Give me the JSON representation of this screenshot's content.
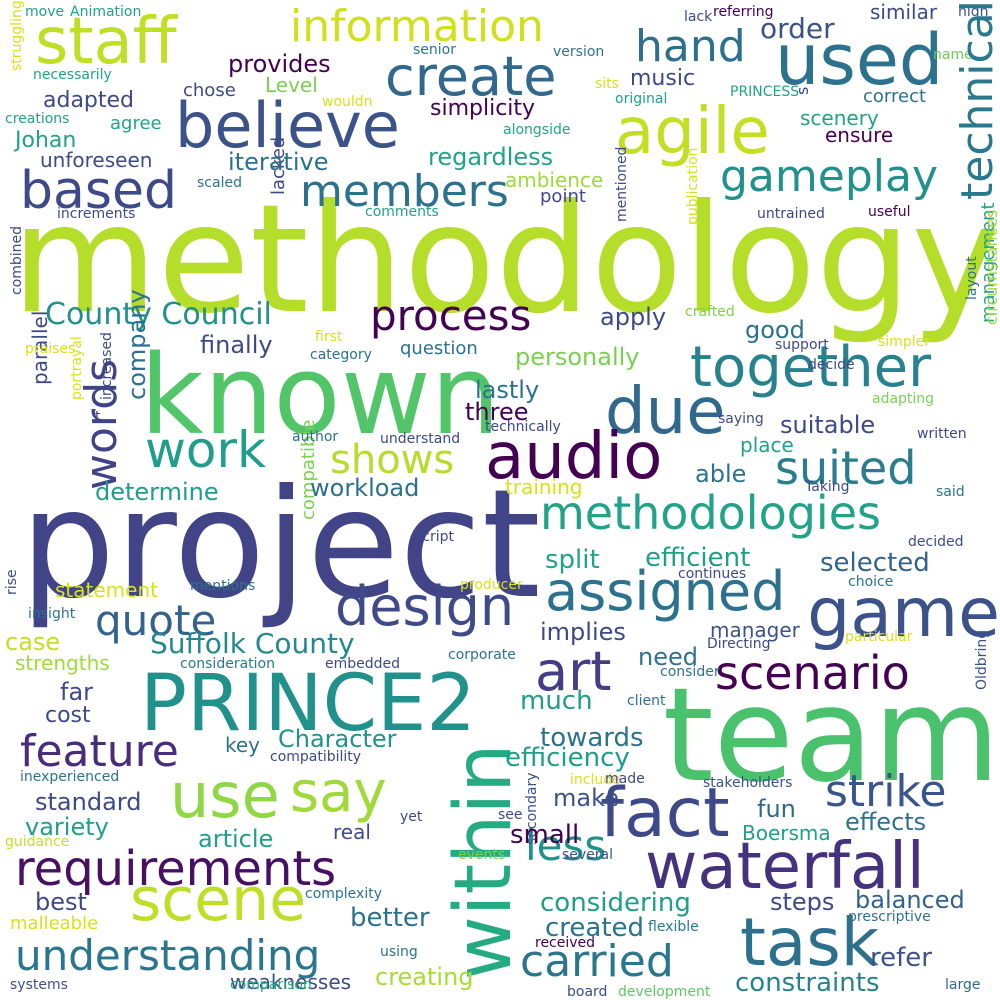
{
  "words": [
    {
      "text": "methodology",
      "color": "#b5de2b"
    },
    {
      "text": "project",
      "color": "#414487"
    },
    {
      "text": "team",
      "color": "#4ac16d"
    },
    {
      "text": "known",
      "color": "#52c569"
    },
    {
      "text": "PRINCE2",
      "color": "#21918c"
    },
    {
      "text": "within",
      "color": "#25ab82"
    },
    {
      "text": "staff",
      "color": "#bddf26"
    },
    {
      "text": "believe",
      "color": "#3b528b"
    },
    {
      "text": "agile",
      "color": "#c2df23"
    },
    {
      "text": "used",
      "color": "#2c728e"
    },
    {
      "text": "information",
      "color": "#d0e11c"
    },
    {
      "text": "create",
      "color": "#31688e"
    },
    {
      "text": "hand",
      "color": "#2d708e"
    },
    {
      "text": "order",
      "color": "#3b528b"
    },
    {
      "text": "similar",
      "color": "#3e4989"
    },
    {
      "text": "high",
      "color": "#3b528b"
    },
    {
      "text": "name",
      "color": "#6ccd5a"
    },
    {
      "text": "based",
      "color": "#3e4989"
    },
    {
      "text": "members",
      "color": "#2c728e"
    },
    {
      "text": "gameplay",
      "color": "#21918c"
    },
    {
      "text": "technical",
      "color": "#2a788e"
    },
    {
      "text": "process",
      "color": "#440154"
    },
    {
      "text": "County Council",
      "color": "#21918c"
    },
    {
      "text": "together",
      "color": "#26828e"
    },
    {
      "text": "due",
      "color": "#31688e"
    },
    {
      "text": "audio",
      "color": "#440154"
    },
    {
      "text": "work",
      "color": "#1f9e89"
    },
    {
      "text": "shows",
      "color": "#b5de2b"
    },
    {
      "text": "words",
      "color": "#404387"
    },
    {
      "text": "suited",
      "color": "#287d8e"
    },
    {
      "text": "methodologies",
      "color": "#20a386"
    },
    {
      "text": "design",
      "color": "#3e4a89"
    },
    {
      "text": "assigned",
      "color": "#2c728e"
    },
    {
      "text": "game",
      "color": "#3b528b"
    },
    {
      "text": "quote",
      "color": "#33638d"
    },
    {
      "text": "Suffolk County",
      "color": "#23898e"
    },
    {
      "text": "art",
      "color": "#433e85"
    },
    {
      "text": "scenario",
      "color": "#440154"
    },
    {
      "text": "feature",
      "color": "#472d7b"
    },
    {
      "text": "use",
      "color": "#8fd744"
    },
    {
      "text": "say",
      "color": "#a0da39"
    },
    {
      "text": "fact",
      "color": "#3e4989"
    },
    {
      "text": "strike",
      "color": "#3a548c"
    },
    {
      "text": "waterfall",
      "color": "#46317e"
    },
    {
      "text": "requirements",
      "color": "#471063"
    },
    {
      "text": "scene",
      "color": "#bddf26"
    },
    {
      "text": "task",
      "color": "#2d708e"
    },
    {
      "text": "understanding",
      "color": "#2a768e"
    },
    {
      "text": "carried",
      "color": "#2a768e"
    },
    {
      "text": "less",
      "color": "#21918c"
    },
    {
      "text": "refer",
      "color": "#3b528b"
    },
    {
      "text": "constraints",
      "color": "#26828e"
    },
    {
      "text": "creating",
      "color": "#a8db34"
    },
    {
      "text": "weaknesses",
      "color": "#3e4989"
    },
    {
      "text": "systems",
      "color": "#3b528b"
    },
    {
      "text": "comparison",
      "color": "#25ab82"
    },
    {
      "text": "board",
      "color": "#3e4989"
    },
    {
      "text": "development",
      "color": "#5ec962"
    },
    {
      "text": "large",
      "color": "#31688e"
    },
    {
      "text": "received",
      "color": "#440154"
    },
    {
      "text": "flexible",
      "color": "#2a788e"
    },
    {
      "text": "malleable",
      "color": "#d8e219"
    },
    {
      "text": "prescriptive",
      "color": "#2c728e"
    },
    {
      "text": "using",
      "color": "#2c728e"
    },
    {
      "text": "secondary",
      "color": "#3b528b"
    },
    {
      "text": "balanced",
      "color": "#33638d"
    },
    {
      "text": "steps",
      "color": "#3e4989"
    },
    {
      "text": "considering",
      "color": "#1f9e89"
    },
    {
      "text": "created",
      "color": "#2c728e"
    },
    {
      "text": "better",
      "color": "#2c728e"
    },
    {
      "text": "best",
      "color": "#3e4989"
    },
    {
      "text": "complexity",
      "color": "#2c728e"
    },
    {
      "text": "several",
      "color": "#3b528b"
    },
    {
      "text": "events",
      "color": "#7ad151"
    },
    {
      "text": "yet",
      "color": "#3e4989"
    },
    {
      "text": "see",
      "color": "#3e4989"
    },
    {
      "text": "guidance",
      "color": "#c2df23"
    },
    {
      "text": "variety",
      "color": "#1f9e89"
    },
    {
      "text": "article",
      "color": "#1f9e89"
    },
    {
      "text": "real",
      "color": "#3e4989"
    },
    {
      "text": "small",
      "color": "#440154"
    },
    {
      "text": "standard",
      "color": "#3e4989"
    },
    {
      "text": "make",
      "color": "#3b528b"
    },
    {
      "text": "fun",
      "color": "#31688e"
    },
    {
      "text": "Boersma",
      "color": "#1f9e89"
    },
    {
      "text": "effects",
      "color": "#2c728e"
    },
    {
      "text": "stakeholders",
      "color": "#3b528b"
    },
    {
      "text": "Oldbring",
      "color": "#3b528b"
    },
    {
      "text": "inexperienced",
      "color": "#2c728e"
    },
    {
      "text": "compatibility",
      "color": "#3e4989"
    },
    {
      "text": "efficiency",
      "color": "#1f9e89"
    },
    {
      "text": "towards",
      "color": "#2c728e"
    },
    {
      "text": "include",
      "color": "#d8e219"
    },
    {
      "text": "made",
      "color": "#3e4989"
    },
    {
      "text": "client",
      "color": "#2c728e"
    },
    {
      "text": "key",
      "color": "#2c728e"
    },
    {
      "text": "Character",
      "color": "#21918c"
    },
    {
      "text": "cost",
      "color": "#3e4989"
    },
    {
      "text": "far",
      "color": "#3e4989"
    },
    {
      "text": "much",
      "color": "#1f9e89"
    },
    {
      "text": "need",
      "color": "#2c728e"
    },
    {
      "text": "manager",
      "color": "#3b528b"
    },
    {
      "text": "consider",
      "color": "#2c728e"
    },
    {
      "text": "Directing",
      "color": "#3e4989"
    },
    {
      "text": "particular",
      "color": "#d8e219"
    },
    {
      "text": "choice",
      "color": "#2c728e"
    },
    {
      "text": "selected",
      "color": "#33638d"
    },
    {
      "text": "continues",
      "color": "#3e4989"
    },
    {
      "text": "strengths",
      "color": "#a0da39"
    },
    {
      "text": "case",
      "color": "#c2df23"
    },
    {
      "text": "consideration",
      "color": "#2a788e"
    },
    {
      "text": "embedded",
      "color": "#3e4989"
    },
    {
      "text": "corporate",
      "color": "#2c728e"
    },
    {
      "text": "implies",
      "color": "#3e4989"
    },
    {
      "text": "split",
      "color": "#20a386"
    },
    {
      "text": "efficient",
      "color": "#1f9e89"
    },
    {
      "text": "statement",
      "color": "#d8e219"
    },
    {
      "text": "mentions",
      "color": "#2c728e"
    },
    {
      "text": "producer",
      "color": "#d8e219"
    },
    {
      "text": "insight",
      "color": "#2c728e"
    },
    {
      "text": "rise",
      "color": "#3e4989"
    },
    {
      "text": "script",
      "color": "#3e4989"
    },
    {
      "text": "compatible",
      "color": "#7ad151"
    },
    {
      "text": "determine",
      "color": "#1f9e89"
    },
    {
      "text": "workload",
      "color": "#2c728e"
    },
    {
      "text": "training",
      "color": "#d8e219"
    },
    {
      "text": "able",
      "color": "#2c728e"
    },
    {
      "text": "Taking",
      "color": "#3e4989"
    },
    {
      "text": "said",
      "color": "#2c728e"
    },
    {
      "text": "decided",
      "color": "#3e4989"
    },
    {
      "text": "place",
      "color": "#20a386"
    },
    {
      "text": "written",
      "color": "#3e4989"
    },
    {
      "text": "parallel",
      "color": "#3e4989"
    },
    {
      "text": "company",
      "color": "#2c728e"
    },
    {
      "text": "increased",
      "color": "#3e4989"
    },
    {
      "text": "portrayal",
      "color": "#d8e219"
    },
    {
      "text": "lastly",
      "color": "#2c728e"
    },
    {
      "text": "three",
      "color": "#440154"
    },
    {
      "text": "technically",
      "color": "#3e4989"
    },
    {
      "text": "author",
      "color": "#2c728e"
    },
    {
      "text": "understand",
      "color": "#3e4989"
    },
    {
      "text": "suitable",
      "color": "#3e4989"
    },
    {
      "text": "saying",
      "color": "#3e4989"
    },
    {
      "text": "adapting",
      "color": "#7ad151"
    },
    {
      "text": "layout",
      "color": "#2c728e"
    },
    {
      "text": "management",
      "color": "#20a386"
    },
    {
      "text": "circumstances",
      "color": "#a0da39"
    },
    {
      "text": "personally",
      "color": "#7ad151"
    },
    {
      "text": "question",
      "color": "#2c728e"
    },
    {
      "text": "category",
      "color": "#2c728e"
    },
    {
      "text": "first",
      "color": "#d8e219"
    },
    {
      "text": "finally",
      "color": "#3e4989"
    },
    {
      "text": "apply",
      "color": "#3e4989"
    },
    {
      "text": "good",
      "color": "#2c728e"
    },
    {
      "text": "crafted",
      "color": "#7ad151"
    },
    {
      "text": "support",
      "color": "#3e4989"
    },
    {
      "text": "decide",
      "color": "#3e4989"
    },
    {
      "text": "simpler",
      "color": "#d8e219"
    },
    {
      "text": "praises",
      "color": "#d8e219"
    },
    {
      "text": "combined",
      "color": "#3e4989"
    },
    {
      "text": "lacked",
      "color": "#3e4989"
    },
    {
      "text": "mentioned",
      "color": "#3e4989"
    },
    {
      "text": "publication",
      "color": "#d8e219"
    },
    {
      "text": "untrained",
      "color": "#3e4989"
    },
    {
      "text": "useful",
      "color": "#440154"
    },
    {
      "text": "point",
      "color": "#3e4989"
    },
    {
      "text": "comments",
      "color": "#20a386"
    },
    {
      "text": "increments",
      "color": "#3e4989"
    },
    {
      "text": "scaled",
      "color": "#2c728e"
    },
    {
      "text": "ambience",
      "color": "#a0da39"
    },
    {
      "text": "regardless",
      "color": "#20a386"
    },
    {
      "text": "iterative",
      "color": "#2c728e"
    },
    {
      "text": "unforeseen",
      "color": "#3e4989"
    },
    {
      "text": "Johan",
      "color": "#20a386"
    },
    {
      "text": "agree",
      "color": "#20a386"
    },
    {
      "text": "creations",
      "color": "#20a386"
    },
    {
      "text": "ensure",
      "color": "#440154"
    },
    {
      "text": "scenery",
      "color": "#20a386"
    },
    {
      "text": "correct",
      "color": "#2c728e"
    },
    {
      "text": "s",
      "color": "#3e4989"
    },
    {
      "text": "alongside",
      "color": "#20a386"
    },
    {
      "text": "PRINCESS",
      "color": "#20a386"
    },
    {
      "text": "original",
      "color": "#20a386"
    },
    {
      "text": "simplicity",
      "color": "#440154"
    },
    {
      "text": "music",
      "color": "#3e4989"
    },
    {
      "text": "sits",
      "color": "#d8e219"
    },
    {
      "text": "Level",
      "color": "#7ad151"
    },
    {
      "text": "provides",
      "color": "#440154"
    },
    {
      "text": "chose",
      "color": "#3e4989"
    },
    {
      "text": "adapted",
      "color": "#3e4989"
    },
    {
      "text": "wouldn",
      "color": "#d8e219"
    },
    {
      "text": "necessarily",
      "color": "#20a386"
    },
    {
      "text": "struggling",
      "color": "#d8e219"
    },
    {
      "text": "move",
      "color": "#20a386"
    },
    {
      "text": "Animation",
      "color": "#20a386"
    },
    {
      "text": "senior",
      "color": "#2c728e"
    },
    {
      "text": "version",
      "color": "#2c728e"
    },
    {
      "text": "lack",
      "color": "#3e4989"
    },
    {
      "text": "referring",
      "color": "#440154"
    },
    {
      "text": "t",
      "color": "#3e4989"
    }
  ]
}
